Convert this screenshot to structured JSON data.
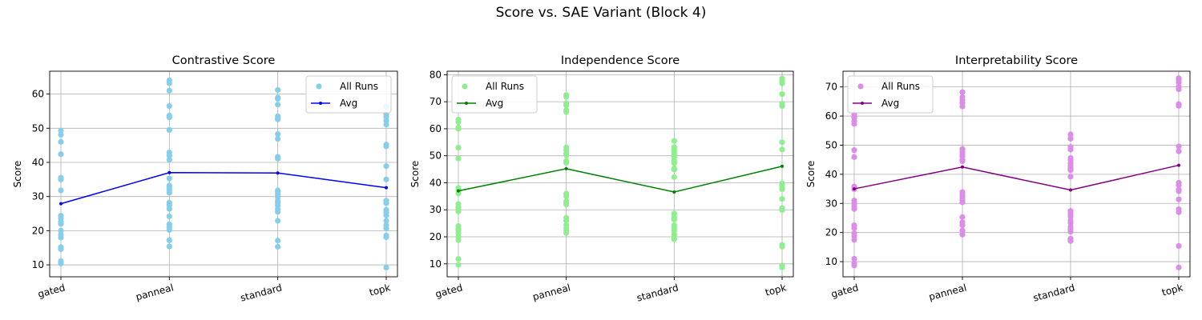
{
  "figure": {
    "suptitle": "Score vs. SAE Variant (Block 4)"
  },
  "chart_data": [
    {
      "type": "scatter",
      "title": "Contrastive Score",
      "xlabel": "",
      "ylabel": "Score",
      "categories": [
        "gated",
        "panneal",
        "standard",
        "topk"
      ],
      "ylim": [
        6.5,
        66.7
      ],
      "yticks": [
        10,
        20,
        30,
        40,
        50,
        60
      ],
      "grid": true,
      "legend": {
        "position": "top-right",
        "entries": [
          "All Runs",
          "Avg"
        ]
      },
      "points_color": "#87CEEB",
      "avg_color": "#0000FF",
      "runs": [
        [
          49.3,
          48.1,
          46.0,
          42.4,
          35.5,
          35.0,
          31.8,
          24.4,
          23.6,
          22.6,
          22.0,
          20.0,
          18.8,
          18.0,
          15.2,
          14.6,
          11.1,
          10.4
        ],
        [
          64.0,
          63.2,
          61.0,
          56.5,
          53.7,
          53.2,
          49.5,
          42.9,
          42.0,
          40.8,
          35.3,
          33.2,
          32.6,
          32.0,
          31.1,
          28.2,
          27.5,
          26.4,
          24.2,
          21.9,
          21.1,
          20.2,
          17.2,
          15.4
        ],
        [
          61.2,
          59.0,
          58.6,
          56.9,
          53.5,
          53.0,
          52.6,
          48.3,
          46.9,
          41.6,
          41.1,
          31.8,
          31.1,
          30.3,
          29.8,
          28.8,
          28.2,
          27.3,
          26.3,
          25.5,
          22.9,
          17.1,
          15.3
        ],
        [
          56.4,
          54.1,
          53.3,
          52.3,
          51.1,
          45.2,
          44.7,
          38.9,
          35.0,
          28.8,
          28.1,
          26.1,
          25.3,
          24.5,
          22.9,
          21.6,
          20.7,
          18.6,
          18.1,
          9.2
        ]
      ],
      "avg": [
        27.9,
        37.0,
        36.9,
        32.6
      ]
    },
    {
      "type": "scatter",
      "title": "Independence Score",
      "xlabel": "",
      "ylabel": "Score",
      "categories": [
        "gated",
        "panneal",
        "standard",
        "topk"
      ],
      "ylim": [
        5.2,
        81.3
      ],
      "yticks": [
        10,
        20,
        30,
        40,
        50,
        60,
        70,
        80
      ],
      "grid": true,
      "legend": {
        "position": "top-left",
        "entries": [
          "All Runs",
          "Avg"
        ]
      },
      "points_color": "#90EE90",
      "avg_color": "#008000",
      "runs": [
        [
          63.4,
          62.5,
          60.5,
          60.0,
          53.0,
          49.0,
          38.1,
          37.2,
          36.0,
          32.1,
          31.0,
          30.3,
          29.4,
          24.0,
          23.0,
          22.4,
          21.3,
          19.9,
          18.8,
          11.8,
          9.6
        ],
        [
          72.5,
          71.8,
          69.4,
          68.6,
          66.9,
          66.2,
          53.1,
          52.1,
          51.0,
          50.2,
          48.1,
          47.4,
          36.0,
          35.0,
          33.2,
          32.6,
          32.0,
          27.0,
          26.0,
          24.4,
          23.3,
          22.4,
          21.4
        ],
        [
          55.5,
          53.2,
          52.2,
          51.3,
          50.4,
          49.5,
          48.2,
          47.3,
          45.3,
          44.9,
          42.1,
          28.6,
          27.4,
          26.4,
          24.3,
          23.2,
          22.3,
          20.9,
          20.0,
          19.1
        ],
        [
          78.6,
          77.5,
          76.8,
          72.8,
          69.2,
          68.4,
          55.0,
          52.3,
          39.8,
          39.1,
          38.1,
          37.6,
          34.0,
          30.6,
          29.9,
          17.0,
          16.4,
          9.3,
          8.7
        ]
      ],
      "avg": [
        37.0,
        45.2,
        36.6,
        46.1
      ]
    },
    {
      "type": "scatter",
      "title": "Interpretability Score",
      "xlabel": "",
      "ylabel": "Score",
      "categories": [
        "gated",
        "panneal",
        "standard",
        "topk"
      ],
      "ylim": [
        4.8,
        75.4
      ],
      "yticks": [
        10,
        20,
        30,
        40,
        50,
        60,
        70
      ],
      "grid": true,
      "legend": {
        "position": "top-left",
        "entries": [
          "All Runs",
          "Avg"
        ]
      },
      "points_color": "#DA8EE7",
      "avg_color": "#800080",
      "runs": [
        [
          60.6,
          59.5,
          58.2,
          57.3,
          48.3,
          45.9,
          35.8,
          34.9,
          31.0,
          30.0,
          29.0,
          28.1,
          22.5,
          21.5,
          19.8,
          18.8,
          17.5,
          11.0,
          9.5,
          8.7
        ],
        [
          68.2,
          66.5,
          65.5,
          64.5,
          63.3,
          48.7,
          47.9,
          47.0,
          46.1,
          45.0,
          44.5,
          33.9,
          33.0,
          32.2,
          31.3,
          30.4,
          25.3,
          23.5,
          22.5,
          20.7,
          19.3
        ],
        [
          53.7,
          52.2,
          49.4,
          48.5,
          45.6,
          44.9,
          43.8,
          42.8,
          42.0,
          41.4,
          39.2,
          27.4,
          26.5,
          25.4,
          24.1,
          23.2,
          21.9,
          21.0,
          20.3,
          17.9,
          17.1
        ],
        [
          73.0,
          72.4,
          71.5,
          70.1,
          69.2,
          64.1,
          63.5,
          49.6,
          47.9,
          37.1,
          36.3,
          34.7,
          34.2,
          31.4,
          28.0,
          27.0,
          15.4,
          8.0
        ]
      ],
      "avg": [
        35.0,
        42.5,
        34.6,
        43.1
      ]
    }
  ]
}
